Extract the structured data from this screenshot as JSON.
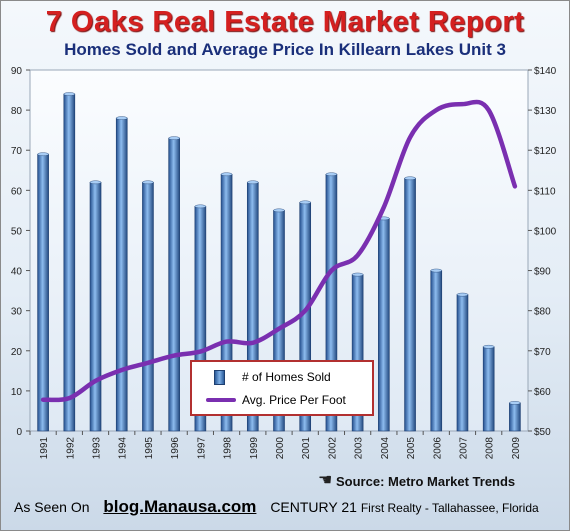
{
  "header": {
    "title": "7 Oaks Real Estate Market Report",
    "subtitle": "Homes Sold and Average Price In Killearn Lakes Unit 3"
  },
  "legend": {
    "bar_label": "# of Homes Sold",
    "line_label": "Avg. Price Per Foot"
  },
  "source": "Source: Metro Market Trends",
  "footer": {
    "as_seen_on": "As Seen On",
    "blog": "blog.Manausa.com",
    "brand": "CENTURY 21",
    "brand_tail": "First Realty - Tallahassee, Florida"
  },
  "colors": {
    "bar": "#3b6fb8",
    "line": "#7a2fb0",
    "title": "#d42020",
    "subtitle": "#1a2f7a"
  },
  "chart_data": {
    "type": "bar",
    "categories": [
      "1991",
      "1992",
      "1993",
      "1994",
      "1995",
      "1996",
      "1997",
      "1998",
      "1999",
      "2000",
      "2001",
      "2002",
      "2003",
      "2004",
      "2005",
      "2006",
      "2007",
      "2008",
      "2009"
    ],
    "series": [
      {
        "name": "# of Homes Sold",
        "type": "bar",
        "axis": "left",
        "values": [
          69,
          84,
          62,
          78,
          62,
          73,
          56,
          64,
          62,
          55,
          57,
          64,
          39,
          53,
          63,
          40,
          34,
          21,
          7
        ]
      },
      {
        "name": "Avg. Price Per Foot",
        "type": "line",
        "axis": "right",
        "values": [
          57.8,
          58.2,
          62.5,
          65.2,
          67,
          68.8,
          69.8,
          72.3,
          72,
          75.5,
          80,
          90,
          93.8,
          105.8,
          123.2,
          130,
          131.5,
          130,
          111
        ]
      }
    ],
    "yleft": {
      "min": 0,
      "max": 90,
      "ticks": [
        "0",
        "10",
        "20",
        "30",
        "40",
        "50",
        "60",
        "70",
        "80",
        "90"
      ]
    },
    "yright": {
      "min": 50,
      "max": 140,
      "ticks": [
        "$50",
        "$60",
        "$70",
        "$80",
        "$90",
        "$100",
        "$110",
        "$120",
        "$130",
        "$140"
      ]
    },
    "grid": false,
    "legend_position": "bottom-center"
  }
}
